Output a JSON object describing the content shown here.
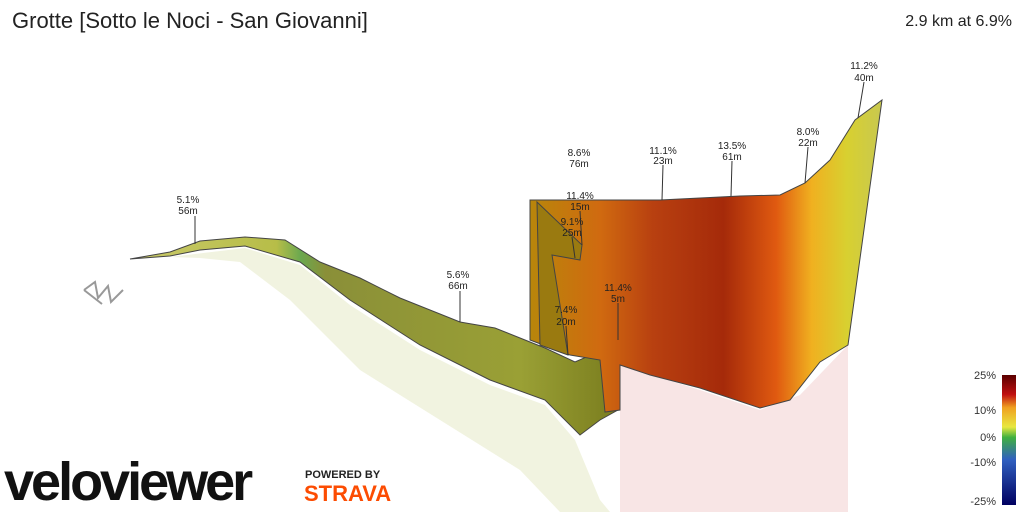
{
  "header": {
    "title": "Grotte [Sotto le Noci - San Giovanni]",
    "summary": "2.9 km at 6.9%"
  },
  "annotations": [
    {
      "grade": "5.1%",
      "length": "56m"
    },
    {
      "grade": "5.6%",
      "length": "66m"
    },
    {
      "grade": "8.6%",
      "length": "76m"
    },
    {
      "grade": "11.4%",
      "length": "15m"
    },
    {
      "grade": "9.1%",
      "length": "25m"
    },
    {
      "grade": "7.4%",
      "length": "20m"
    },
    {
      "grade": "11.4%",
      "length": "5m"
    },
    {
      "grade": "11.1%",
      "length": "23m"
    },
    {
      "grade": "13.5%",
      "length": "61m"
    },
    {
      "grade": "8.0%",
      "length": "22m"
    },
    {
      "grade": "11.2%",
      "length": "40m"
    }
  ],
  "legend": {
    "labels": [
      "25%",
      "10%",
      "0%",
      "-10%",
      "-25%"
    ]
  },
  "branding": {
    "logo": "veloviewer",
    "powered_by": "POWERED BY",
    "partner": "STRAVA"
  }
}
